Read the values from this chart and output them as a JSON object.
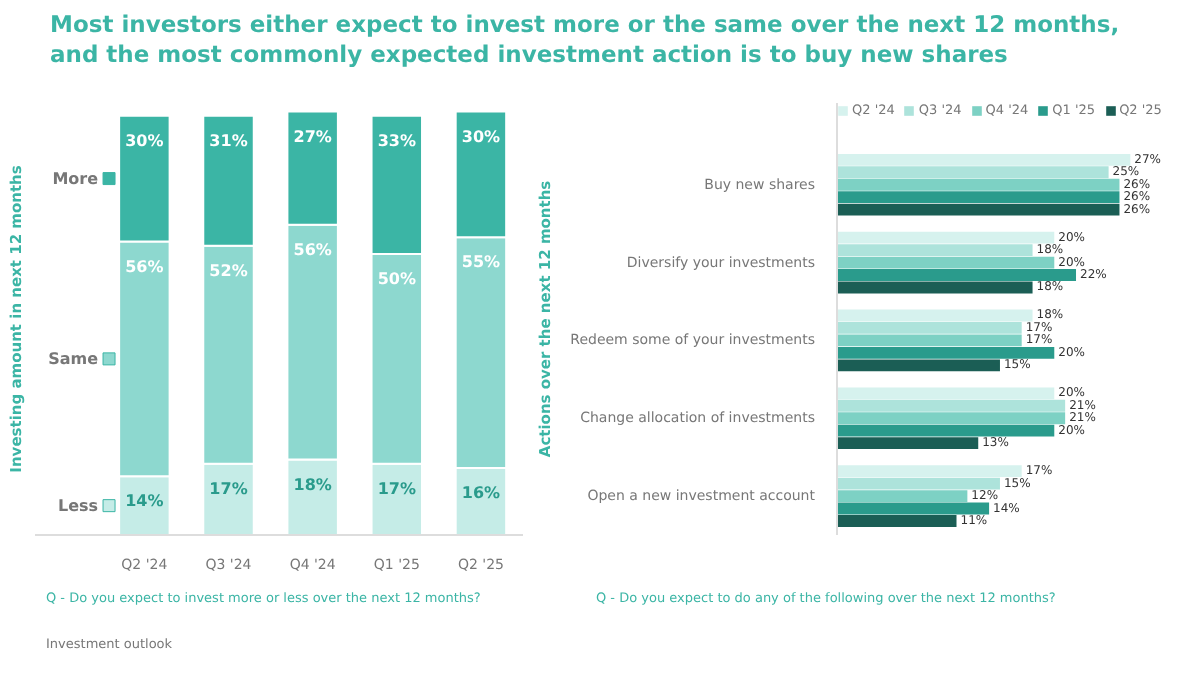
{
  "chart_data": [
    {
      "type": "bar",
      "title": "Most investors either expect to invest more or the same over the next 12 months, and the most commonly expected investment action is to buy new shares",
      "ylabel": "Investing amount in next 12 months",
      "categories": [
        "Q2 '24",
        "Q3 '24",
        "Q4 '24",
        "Q1 '25",
        "Q2 '25"
      ],
      "stacked": true,
      "tick_labels": "x",
      "legend": "left",
      "grid": false,
      "series": [
        {
          "name": "Less",
          "color": "#c5ece7",
          "values": [
            14,
            17,
            18,
            17,
            16
          ],
          "value_labels": [
            "14%",
            "17%",
            "18%",
            "17%",
            "16%"
          ]
        },
        {
          "name": "Same",
          "color": "#8dd8cf",
          "values": [
            56,
            52,
            56,
            50,
            55
          ],
          "value_labels": [
            "56%",
            "52%",
            "56%",
            "50%",
            "55%"
          ]
        },
        {
          "name": "More",
          "color": "#3bb5a5",
          "values": [
            30,
            31,
            27,
            33,
            30
          ],
          "value_labels": [
            "30%",
            "31%",
            "27%",
            "33%",
            "30%"
          ]
        }
      ],
      "annotations": [
        "Q - Do you expect to invest more or less over the next 12 months?",
        "Investment outlook"
      ]
    },
    {
      "type": "bar",
      "orientation": "horizontal",
      "ylabel": "Actions over the next 12 months",
      "categories": [
        "Buy new shares",
        "Diversify your investments",
        "Redeem some of your investments",
        "Change allocation of investments",
        "Open a new investment account"
      ],
      "tick_labels": "y",
      "legend": "top",
      "grid": false,
      "series": [
        {
          "name": "Q2 '24",
          "color": "#d6f2ee",
          "values": [
            27,
            20,
            18,
            20,
            17
          ],
          "value_labels": [
            "27%",
            "20%",
            "18%",
            "20%",
            "17%"
          ]
        },
        {
          "name": "Q3 '24",
          "color": "#ade3db",
          "values": [
            25,
            18,
            17,
            21,
            15
          ],
          "value_labels": [
            "25%",
            "18%",
            "17%",
            "21%",
            "15%"
          ]
        },
        {
          "name": "Q4 '24",
          "color": "#7dd1c4",
          "values": [
            26,
            20,
            17,
            21,
            12
          ],
          "value_labels": [
            "26%",
            "20%",
            "17%",
            "21%",
            "12%"
          ]
        },
        {
          "name": "Q1 '25",
          "color": "#2a9b8c",
          "values": [
            26,
            22,
            20,
            20,
            14
          ],
          "value_labels": [
            "26%",
            "22%",
            "20%",
            "20%",
            "14%"
          ]
        },
        {
          "name": "Q2 '25",
          "color": "#1b5e55",
          "values": [
            26,
            18,
            15,
            13,
            11
          ],
          "value_labels": [
            "26%",
            "18%",
            "15%",
            "13%",
            "11%"
          ]
        }
      ],
      "annotations": [
        "Q - Do you expect to do any of the following over the next 12 months?"
      ]
    }
  ]
}
